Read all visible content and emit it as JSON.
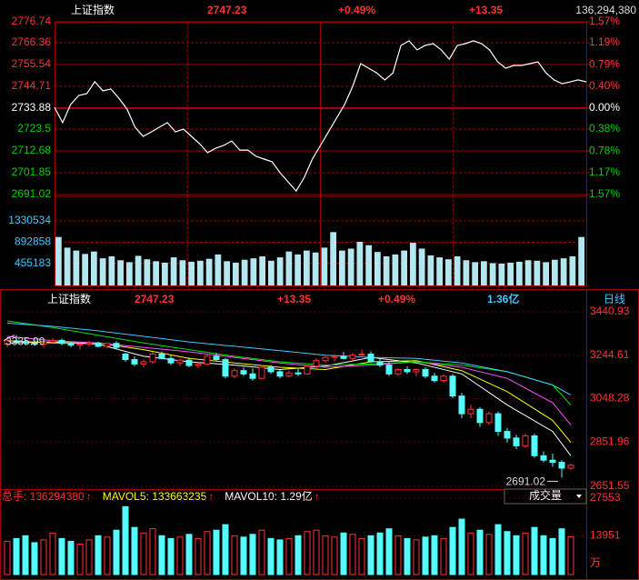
{
  "chart_data": [
    {
      "type": "line",
      "title": "上证指数",
      "price": 2747.23,
      "change_pct": "+0.49%",
      "change": "+13.35",
      "volume_total": "136,294,380",
      "color": "#ffffff",
      "up_color": "#ff3232",
      "down_color": "#00d000",
      "values": [
        2734.3,
        2726.7,
        2735.7,
        2740.2,
        2741.1,
        2747.0,
        2742.5,
        2743.4,
        2738.8,
        2733.4,
        2724.4,
        2719.9,
        2722.1,
        2724.4,
        2726.7,
        2722.1,
        2723.5,
        2719.9,
        2716.3,
        2711.8,
        2714.0,
        2715.4,
        2717.6,
        2713.1,
        2713.1,
        2710.0,
        2708.6,
        2707.3,
        2701.8,
        2697.3,
        2692.8,
        2699.6,
        2708.6,
        2715.4,
        2722.1,
        2728.9,
        2735.7,
        2744.7,
        2756.0,
        2753.7,
        2751.4,
        2747.9,
        2751.4,
        2765.0,
        2767.3,
        2762.8,
        2765.0,
        2765.9,
        2762.8,
        2758.2,
        2765.0,
        2765.9,
        2767.3,
        2765.9,
        2762.8,
        2756.9,
        2753.7,
        2755.1,
        2755.1,
        2756.0,
        2756.9,
        2751.4,
        2747.9,
        2746.0,
        2746.9,
        2747.9,
        2746.9
      ],
      "ylim": [
        2691.02,
        2776.74
      ],
      "yticks": [
        2776.74,
        2766.36,
        2755.54,
        2744.71,
        2733.88,
        2723.5,
        2712.68,
        2701.85,
        2691.02
      ],
      "y2lim": [
        -1.57,
        1.57
      ],
      "y2ticks": [
        {
          "value": 1.57,
          "label": "1.57%"
        },
        {
          "value": 1.19,
          "label": "1.19%"
        },
        {
          "value": 0.79,
          "label": "0.79%"
        },
        {
          "value": 0.4,
          "label": "0.40%"
        },
        {
          "value": 0,
          "label": "0.00%"
        },
        {
          "value": -0.38,
          "label": "0.38%"
        },
        {
          "value": -0.78,
          "label": "0.78%"
        },
        {
          "value": -1.17,
          "label": "1.17%"
        },
        {
          "value": -1.57,
          "label": "1.57%"
        }
      ],
      "volume": {
        "color": "#b4e6f0",
        "ylim": [
          0,
          1800000
        ],
        "yticks": [
          1330534,
          892858,
          455183
        ],
        "values": [
          1000000,
          780000,
          720000,
          650000,
          700000,
          560000,
          600000,
          520000,
          480000,
          610000,
          540000,
          500000,
          470000,
          580000,
          520000,
          490000,
          510000,
          550000,
          640000,
          500000,
          470000,
          530000,
          560000,
          600000,
          510000,
          580000,
          700000,
          640000,
          720000,
          680000,
          780000,
          1100000,
          720000,
          760000,
          900000,
          830000,
          690000,
          600000,
          640000,
          720000,
          880000,
          760000,
          620000,
          580000,
          540000,
          600000,
          520000,
          480000,
          500000,
          460000,
          450000,
          470000,
          490000,
          520000,
          510000,
          480000,
          530000,
          560000,
          600000,
          1000000
        ]
      }
    },
    {
      "type": "candlestick",
      "title": "上证指数",
      "price": 2747.23,
      "change": "+13.35",
      "change_pct": "+0.49%",
      "amount": "1.36亿",
      "period": "日线",
      "up_color": "#ff3232",
      "down_color": "#54fcfc",
      "ylim": [
        2651.55,
        3440.93
      ],
      "yticks": [
        3440.93,
        3244.61,
        3048.28,
        2851.96,
        2651.55
      ],
      "high_label": 3335.99,
      "low_label": 2691.02,
      "candles": [
        [
          3295,
          3320,
          3280,
          3310
        ],
        [
          3310,
          3335.99,
          3300,
          3305
        ],
        [
          3305,
          3318,
          3290,
          3300
        ],
        [
          3300,
          3312,
          3285,
          3295
        ],
        [
          3295,
          3310,
          3280,
          3305
        ],
        [
          3305,
          3322,
          3295,
          3312
        ],
        [
          3312,
          3320,
          3290,
          3298
        ],
        [
          3298,
          3305,
          3280,
          3290
        ],
        [
          3290,
          3300,
          3270,
          3295
        ],
        [
          3295,
          3310,
          3285,
          3300
        ],
        [
          3300,
          3305,
          3280,
          3285
        ],
        [
          3285,
          3300,
          3275,
          3298
        ],
        [
          3298,
          3308,
          3270,
          3280
        ],
        [
          3250,
          3255,
          3215,
          3225
        ],
        [
          3225,
          3240,
          3195,
          3205
        ],
        [
          3205,
          3225,
          3190,
          3215
        ],
        [
          3215,
          3260,
          3205,
          3250
        ],
        [
          3250,
          3262,
          3225,
          3230
        ],
        [
          3230,
          3245,
          3200,
          3210
        ],
        [
          3210,
          3230,
          3195,
          3222
        ],
        [
          3222,
          3235,
          3190,
          3198
        ],
        [
          3198,
          3215,
          3185,
          3205
        ],
        [
          3205,
          3250,
          3200,
          3240
        ],
        [
          3240,
          3255,
          3220,
          3225
        ],
        [
          3225,
          3232,
          3140,
          3150
        ],
        [
          3150,
          3185,
          3140,
          3175
        ],
        [
          3175,
          3190,
          3150,
          3160
        ],
        [
          3160,
          3185,
          3130,
          3140
        ],
        [
          3140,
          3200,
          3135,
          3190
        ],
        [
          3190,
          3200,
          3160,
          3170
        ],
        [
          3170,
          3180,
          3140,
          3150
        ],
        [
          3150,
          3175,
          3145,
          3165
        ],
        [
          3165,
          3185,
          3150,
          3160
        ],
        [
          3160,
          3200,
          3155,
          3195
        ],
        [
          3195,
          3230,
          3185,
          3220
        ],
        [
          3220,
          3245,
          3210,
          3235
        ],
        [
          3235,
          3250,
          3215,
          3240
        ],
        [
          3240,
          3260,
          3225,
          3230
        ],
        [
          3230,
          3255,
          3220,
          3245
        ],
        [
          3245,
          3270,
          3235,
          3250
        ],
        [
          3250,
          3262,
          3210,
          3215
        ],
        [
          3215,
          3230,
          3190,
          3200
        ],
        [
          3200,
          3215,
          3150,
          3160
        ],
        [
          3160,
          3185,
          3150,
          3180
        ],
        [
          3180,
          3195,
          3160,
          3170
        ],
        [
          3170,
          3185,
          3150,
          3180
        ],
        [
          3180,
          3190,
          3140,
          3150
        ],
        [
          3150,
          3165,
          3120,
          3130
        ],
        [
          3130,
          3160,
          3120,
          3150
        ],
        [
          3150,
          3160,
          3050,
          3060
        ],
        [
          3060,
          3075,
          2960,
          2980
        ],
        [
          2980,
          3020,
          2960,
          3000
        ],
        [
          3000,
          3010,
          2920,
          2940
        ],
        [
          2940,
          2990,
          2930,
          2980
        ],
        [
          2980,
          2990,
          2880,
          2900
        ],
        [
          2900,
          2915,
          2850,
          2870
        ],
        [
          2870,
          2885,
          2820,
          2835
        ],
        [
          2835,
          2890,
          2825,
          2880
        ],
        [
          2880,
          2890,
          2780,
          2790
        ],
        [
          2790,
          2810,
          2760,
          2770
        ],
        [
          2770,
          2800,
          2740,
          2760
        ],
        [
          2760,
          2770,
          2691.02,
          2734
        ],
        [
          2734,
          2755,
          2725,
          2747.23
        ]
      ],
      "ma_lines": [
        {
          "color": "#ffffff",
          "x": [
            0,
            5,
            10,
            15,
            20,
            25,
            30,
            35,
            40,
            45,
            50,
            55,
            60,
            62
          ],
          "values": [
            3300,
            3305,
            3295,
            3240,
            3215,
            3200,
            3180,
            3195,
            3235,
            3210,
            3160,
            3020,
            2900,
            2790
          ]
        },
        {
          "color": "#ffff00",
          "x": [
            0,
            5,
            10,
            15,
            20,
            25,
            30,
            35,
            40,
            45,
            50,
            55,
            60,
            62
          ],
          "values": [
            3310,
            3300,
            3300,
            3270,
            3230,
            3210,
            3190,
            3180,
            3215,
            3220,
            3175,
            3080,
            2950,
            2850
          ]
        },
        {
          "color": "#ff50ff",
          "x": [
            0,
            5,
            10,
            15,
            20,
            25,
            30,
            35,
            40,
            45,
            50,
            55,
            60,
            62
          ],
          "values": [
            3330,
            3310,
            3300,
            3280,
            3260,
            3235,
            3210,
            3190,
            3200,
            3215,
            3190,
            3140,
            3030,
            2930
          ]
        },
        {
          "color": "#00e000",
          "x": [
            0,
            5,
            10,
            15,
            20,
            25,
            30,
            35,
            40,
            45,
            50,
            55,
            60,
            62
          ],
          "values": [
            3400,
            3370,
            3335,
            3300,
            3270,
            3240,
            3215,
            3200,
            3205,
            3215,
            3200,
            3170,
            3110,
            3020
          ]
        },
        {
          "color": "#40c8ff",
          "x": [
            0,
            5,
            10,
            15,
            20,
            25,
            30,
            35,
            40,
            45,
            50,
            55,
            60,
            62
          ],
          "values": [
            3390,
            3375,
            3355,
            3330,
            3305,
            3285,
            3265,
            3245,
            3235,
            3230,
            3210,
            3170,
            3110,
            3065
          ]
        }
      ],
      "volume": {
        "legend": [
          {
            "text": "总手: 136294380",
            "color": "#ff3232"
          },
          {
            "text": "MAVOL5: 133663235",
            "color": "#ffff00"
          },
          {
            "text": "MAVOL10: 1.29亿",
            "color": "#ffffff"
          }
        ],
        "selector": "成交量",
        "unit": "万",
        "ylim": [
          0,
          27553
        ],
        "yticks": [
          27553,
          13951
        ],
        "values": [
          12000,
          13000,
          14000,
          11500,
          12500,
          15000,
          13000,
          12000,
          11000,
          12500,
          14000,
          13500,
          16000,
          24500,
          17000,
          15000,
          16500,
          14000,
          13000,
          13500,
          14500,
          13000,
          15500,
          16000,
          18000,
          14000,
          13500,
          14500,
          16000,
          13000,
          12500,
          13000,
          14000,
          15500,
          16000,
          14000,
          13500,
          15000,
          14500,
          13000,
          14000,
          15000,
          16500,
          14000,
          13000,
          12500,
          13500,
          14000,
          13000,
          17000,
          20000,
          15000,
          16000,
          14500,
          18000,
          15500,
          14000,
          15000,
          17000,
          14000,
          13000,
          16500,
          13600
        ]
      }
    }
  ]
}
